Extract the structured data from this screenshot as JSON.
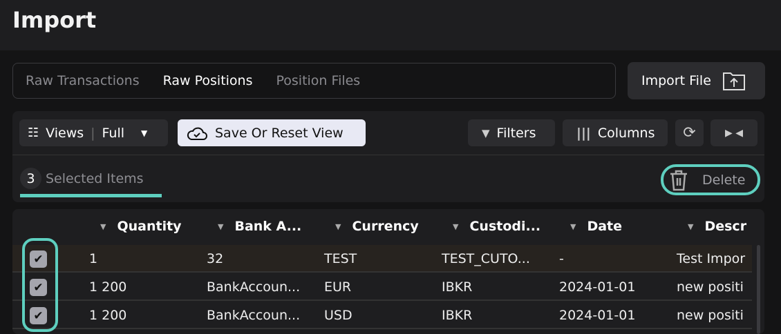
{
  "page": {
    "title": "Import"
  },
  "tabs": [
    {
      "label": "Raw Transactions"
    },
    {
      "label": "Raw Positions",
      "active": true
    },
    {
      "label": "Position Files"
    }
  ],
  "import_button": {
    "label": "Import File",
    "icon": "folder-upload-icon"
  },
  "toolbar": {
    "views_label": "Views",
    "views_value": "Full",
    "save_reset": "Save Or Reset View",
    "filters": "Filters",
    "columns": "Columns"
  },
  "selection": {
    "count": "3",
    "label": "Selected Items",
    "delete": "Delete"
  },
  "accent": "#5ecfbf",
  "table": {
    "columns": [
      "Quantity",
      "Bank A...",
      "Currency",
      "Custodi...",
      "Date",
      "Descr"
    ],
    "rows": [
      {
        "checked": true,
        "cells": [
          "1",
          "32",
          "TEST",
          "TEST_CUTO...",
          "-",
          "Test Impor"
        ]
      },
      {
        "checked": true,
        "cells": [
          "1 200",
          "BankAccoun...",
          "EUR",
          "IBKR",
          "2024-01-01",
          "new positi"
        ]
      },
      {
        "checked": true,
        "cells": [
          "1 200",
          "BankAccoun...",
          "USD",
          "IBKR",
          "2024-01-01",
          "new positi"
        ]
      }
    ]
  }
}
